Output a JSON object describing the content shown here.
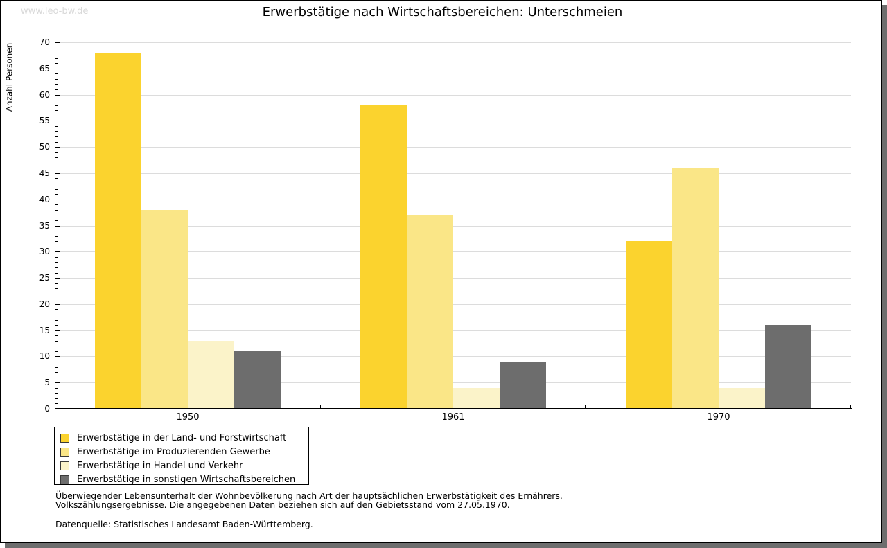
{
  "watermark": "www.leo-bw.de",
  "chart_data": {
    "type": "bar",
    "title": "Erwerbstätige nach Wirtschaftsbereichen: Unterschmeien",
    "ylabel": "Anzahl Personen",
    "xlabel": "",
    "ylim": [
      0,
      70
    ],
    "ytick_step": 5,
    "grid": "horizontal",
    "grid_color": "#dcdcdc",
    "axis_color": "#000000",
    "legend_position": "bottom-left",
    "categories": [
      "1950",
      "1961",
      "1970"
    ],
    "series": [
      {
        "name": "Erwerbstätige in der Land- und Forstwirtschaft",
        "color": "#fbd32e",
        "values": [
          68,
          58,
          32
        ]
      },
      {
        "name": "Erwerbstätige im Produzierenden Gewerbe",
        "color": "#fae687",
        "values": [
          38,
          37,
          46
        ]
      },
      {
        "name": "Erwerbstätige in Handel und Verkehr",
        "color": "#fbf3c9",
        "values": [
          13,
          4,
          4
        ]
      },
      {
        "name": "Erwerbstätige in sonstigen Wirtschaftsbereichen",
        "color": "#6d6d6d",
        "values": [
          11,
          9,
          16
        ]
      }
    ]
  },
  "footnotes": [
    "Überwiegender Lebensunterhalt der Wohnbevölkerung nach Art der hauptsächlichen Erwerbstätigkeit des Ernährers.",
    "Volkszählungsergebnisse. Die angegebenen Daten beziehen sich auf den Gebietsstand vom 27.05.1970."
  ],
  "source": "Datenquelle: Statistisches Landesamt Baden-Württemberg.",
  "shadow_color": "#6e6e6e",
  "watermark_color": "#d9d9d9"
}
